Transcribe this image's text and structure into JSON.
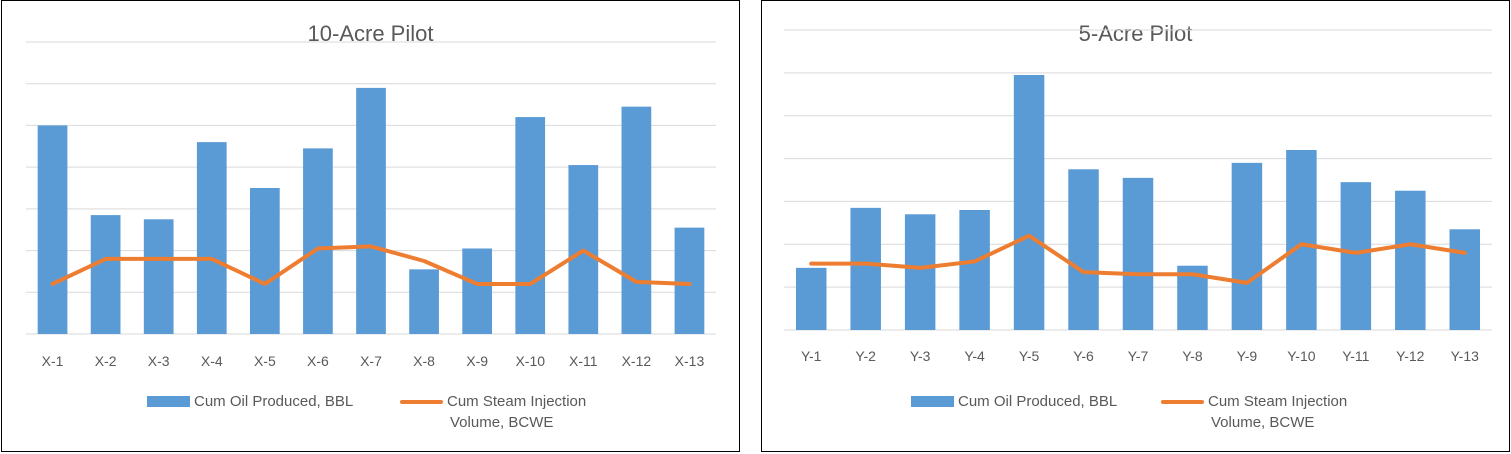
{
  "chart_data": [
    {
      "type": "bar+line",
      "title": "10-Acre Pilot",
      "categories": [
        "X-1",
        "X-2",
        "X-3",
        "X-4",
        "X-5",
        "X-6",
        "X-7",
        "X-8",
        "X-9",
        "X-10",
        "X-11",
        "X-12",
        "X-13"
      ],
      "series": [
        {
          "name": "Cum Oil Produced, BBL",
          "kind": "bar",
          "values": [
            5.0,
            2.85,
            2.75,
            4.6,
            3.5,
            4.45,
            5.9,
            1.55,
            2.05,
            5.2,
            4.05,
            5.45,
            2.55
          ]
        },
        {
          "name": "Cum Steam Injection Volume, BCWE",
          "kind": "line",
          "values": [
            1.2,
            1.8,
            1.8,
            1.8,
            1.2,
            2.05,
            2.1,
            1.75,
            1.2,
            1.2,
            2.0,
            1.25,
            1.2
          ]
        }
      ],
      "ylim": [
        0,
        7
      ],
      "gridlines": 7,
      "xlabel": "",
      "ylabel": ""
    },
    {
      "type": "bar+line",
      "title": "5-Acre Pilot",
      "categories": [
        "Y-1",
        "Y-2",
        "Y-3",
        "Y-4",
        "Y-5",
        "Y-6",
        "Y-7",
        "Y-8",
        "Y-9",
        "Y-10",
        "Y-11",
        "Y-12",
        "Y-13"
      ],
      "series": [
        {
          "name": "Cum Oil Produced, BBL",
          "kind": "bar",
          "values": [
            1.45,
            2.85,
            2.7,
            2.8,
            5.95,
            3.75,
            3.55,
            1.5,
            3.9,
            4.2,
            3.45,
            3.25,
            2.35
          ]
        },
        {
          "name": "Cum Steam Injection Volume, BCWE",
          "kind": "line",
          "values": [
            1.55,
            1.55,
            1.45,
            1.6,
            2.2,
            1.35,
            1.3,
            1.3,
            1.1,
            2.0,
            1.8,
            2.0,
            1.8
          ]
        }
      ],
      "ylim": [
        0,
        7
      ],
      "gridlines": 7,
      "xlabel": "",
      "ylabel": ""
    }
  ],
  "colors": {
    "bar": "#5b9bd5",
    "line": "#ed7d31",
    "grid": "#d9d9d9",
    "text": "#595959"
  },
  "legend": {
    "bar_label": "Cum Oil Produced, BBL",
    "line_label_1": "Cum Steam Injection",
    "line_label_2": "Volume, BCWE"
  }
}
